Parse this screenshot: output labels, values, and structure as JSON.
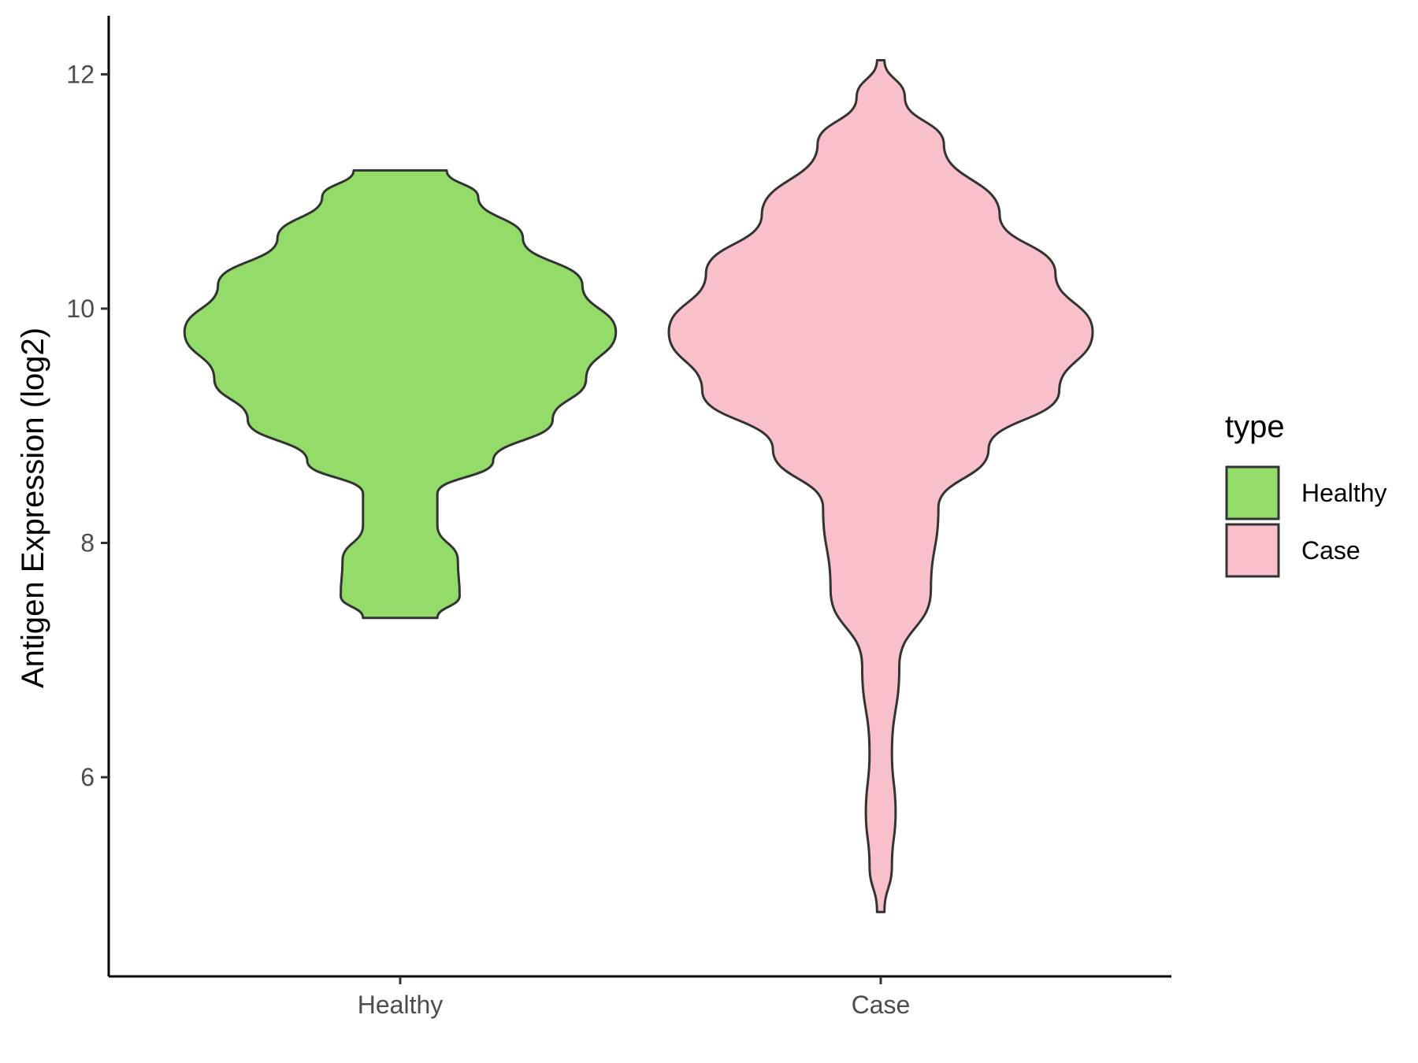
{
  "chart_data": {
    "type": "violin",
    "title": "",
    "xlabel": "",
    "ylabel": "Antigen Expression (log2)",
    "ylim": [
      4.3,
      12.5
    ],
    "y_ticks": [
      "6",
      "8",
      "10",
      "12"
    ],
    "categories": [
      "Healthy",
      "Case"
    ],
    "grid": false,
    "legend": {
      "title": "type",
      "position": "right",
      "entries": [
        {
          "label": "Healthy",
          "color": "#93dc6a"
        },
        {
          "label": "Case",
          "color": "#f8c0cb"
        }
      ]
    },
    "series": [
      {
        "name": "Healthy",
        "color": "#93dc6a",
        "y_min": 7.36,
        "y_max": 11.18,
        "density_profile": [
          [
            7.36,
            0.2
          ],
          [
            7.55,
            0.32
          ],
          [
            7.85,
            0.31
          ],
          [
            8.15,
            0.2
          ],
          [
            8.42,
            0.2
          ],
          [
            8.7,
            0.5
          ],
          [
            9.05,
            0.82
          ],
          [
            9.4,
            1.0
          ],
          [
            9.8,
            1.16
          ],
          [
            10.2,
            0.98
          ],
          [
            10.6,
            0.66
          ],
          [
            10.95,
            0.42
          ],
          [
            11.18,
            0.25
          ]
        ]
      },
      {
        "name": "Case",
        "color": "#f8c0cb",
        "y_min": 4.85,
        "y_max": 12.12,
        "density_profile": [
          [
            4.85,
            0.02
          ],
          [
            5.25,
            0.06
          ],
          [
            5.7,
            0.08
          ],
          [
            6.2,
            0.06
          ],
          [
            6.95,
            0.1
          ],
          [
            7.6,
            0.27
          ],
          [
            8.3,
            0.31
          ],
          [
            8.8,
            0.58
          ],
          [
            9.3,
            0.96
          ],
          [
            9.8,
            1.14
          ],
          [
            10.3,
            0.94
          ],
          [
            10.8,
            0.64
          ],
          [
            11.4,
            0.34
          ],
          [
            11.8,
            0.13
          ],
          [
            12.12,
            0.02
          ]
        ]
      }
    ]
  }
}
